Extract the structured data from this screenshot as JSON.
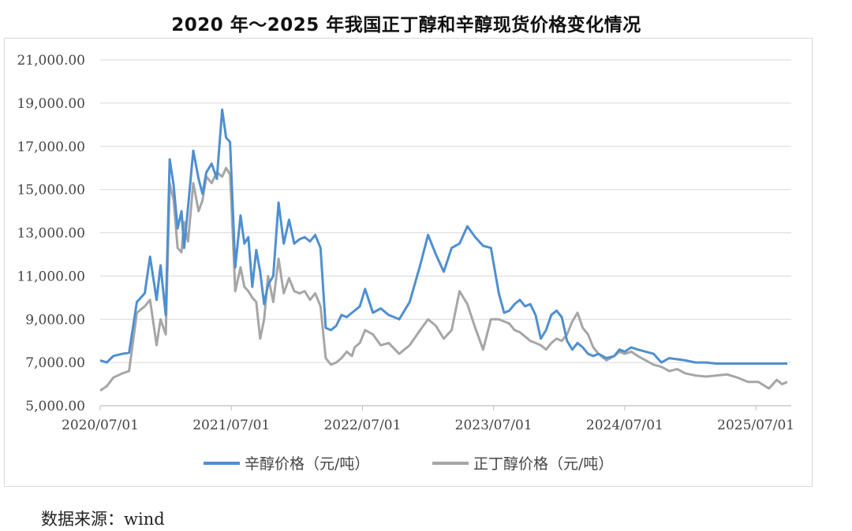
{
  "title": "2020 年～2025 年我国正丁醇和辛醇现货价格变化情况",
  "source": "数据来源：wind",
  "chart_data": {
    "type": "line",
    "title": "2020 年～2025 年我国正丁醇和辛醇现货价格变化情况",
    "xlabel": "",
    "ylabel": "",
    "ylim": [
      5000,
      21000
    ],
    "yticks": [
      5000,
      7000,
      9000,
      11000,
      13000,
      15000,
      17000,
      19000,
      21000
    ],
    "ytick_labels": [
      "5,000.00",
      "7,000.00",
      "9,000.00",
      "11,000.00",
      "13,000.00",
      "15,000.00",
      "17,000.00",
      "19,000.00",
      "21,000.00"
    ],
    "xlim": [
      2020.5,
      2025.77
    ],
    "xticks": [
      2020.5,
      2021.5,
      2022.5,
      2023.5,
      2024.5,
      2025.5
    ],
    "xtick_labels": [
      "2020/07/01",
      "2021/07/01",
      "2022/07/01",
      "2023/07/01",
      "2024/07/01",
      "2025/07/01"
    ],
    "grid": true,
    "legend": "bottom",
    "series": [
      {
        "name": "辛醇价格（元/吨）",
        "color": "#4f8fd0",
        "x": [
          2020.5,
          2020.55,
          2020.6,
          2020.67,
          2020.72,
          2020.78,
          2020.84,
          2020.88,
          2020.93,
          2020.96,
          2021.0,
          2021.03,
          2021.06,
          2021.09,
          2021.12,
          2021.14,
          2021.17,
          2021.21,
          2021.25,
          2021.28,
          2021.31,
          2021.35,
          2021.39,
          2021.43,
          2021.46,
          2021.49,
          2021.5,
          2021.53,
          2021.57,
          2021.6,
          2021.63,
          2021.66,
          2021.69,
          2021.72,
          2021.75,
          2021.78,
          2021.82,
          2021.86,
          2021.9,
          2021.94,
          2021.98,
          2022.02,
          2022.06,
          2022.1,
          2022.14,
          2022.18,
          2022.22,
          2022.26,
          2022.3,
          2022.34,
          2022.38,
          2022.42,
          2022.44,
          2022.48,
          2022.52,
          2022.58,
          2022.64,
          2022.7,
          2022.78,
          2022.86,
          2022.94,
          2023.0,
          2023.06,
          2023.12,
          2023.18,
          2023.24,
          2023.3,
          2023.36,
          2023.42,
          2023.48,
          2023.54,
          2023.58,
          2023.62,
          2023.66,
          2023.7,
          2023.74,
          2023.78,
          2023.82,
          2023.86,
          2023.9,
          2023.94,
          2023.98,
          2024.02,
          2024.06,
          2024.1,
          2024.14,
          2024.18,
          2024.22,
          2024.26,
          2024.3,
          2024.36,
          2024.42,
          2024.46,
          2024.5,
          2024.55,
          2024.6,
          2024.66,
          2024.72,
          2024.78,
          2024.84,
          2024.9,
          2024.96,
          2025.04,
          2025.12,
          2025.2,
          2025.28,
          2025.36,
          2025.44,
          2025.52,
          2025.6,
          2025.66,
          2025.7,
          2025.74
        ],
        "values": [
          7100,
          7000,
          7300,
          7400,
          7450,
          9800,
          10200,
          11900,
          9900,
          11500,
          9200,
          16400,
          15200,
          13200,
          14000,
          12300,
          14200,
          16800,
          15500,
          14800,
          15800,
          16200,
          15500,
          18700,
          17400,
          17200,
          15800,
          11400,
          13800,
          12500,
          12800,
          10500,
          12200,
          11200,
          9700,
          10600,
          11000,
          14400,
          12500,
          13600,
          12500,
          12700,
          12800,
          12600,
          12900,
          12300,
          8600,
          8500,
          8700,
          9200,
          9100,
          9300,
          9400,
          9600,
          10400,
          9300,
          9500,
          9200,
          9000,
          9800,
          11500,
          12900,
          12000,
          11200,
          12300,
          12500,
          13300,
          12800,
          12400,
          12300,
          10200,
          9300,
          9400,
          9700,
          9900,
          9600,
          9700,
          9200,
          8100,
          8500,
          9200,
          9400,
          9100,
          8000,
          7600,
          7900,
          7700,
          7400,
          7300,
          7400,
          7200,
          7300,
          7600,
          7500,
          7700,
          7600,
          7500,
          7400,
          7000,
          7200,
          7150,
          7100,
          7000,
          7000,
          6950,
          6950,
          6950,
          6950,
          6950,
          6950,
          6950,
          6950,
          6950
        ]
      },
      {
        "name": "正丁醇价格（元/吨）",
        "color": "#a6a6a6",
        "x": [
          2020.5,
          2020.55,
          2020.6,
          2020.67,
          2020.72,
          2020.78,
          2020.84,
          2020.88,
          2020.93,
          2020.96,
          2021.0,
          2021.03,
          2021.06,
          2021.09,
          2021.12,
          2021.14,
          2021.17,
          2021.21,
          2021.25,
          2021.28,
          2021.31,
          2021.35,
          2021.39,
          2021.43,
          2021.46,
          2021.49,
          2021.5,
          2021.53,
          2021.57,
          2021.6,
          2021.63,
          2021.66,
          2021.69,
          2021.72,
          2021.75,
          2021.78,
          2021.82,
          2021.86,
          2021.9,
          2021.94,
          2021.98,
          2022.02,
          2022.06,
          2022.1,
          2022.14,
          2022.18,
          2022.22,
          2022.26,
          2022.3,
          2022.34,
          2022.38,
          2022.42,
          2022.44,
          2022.48,
          2022.52,
          2022.58,
          2022.64,
          2022.7,
          2022.78,
          2022.86,
          2022.94,
          2023.0,
          2023.06,
          2023.12,
          2023.18,
          2023.24,
          2023.3,
          2023.36,
          2023.42,
          2023.48,
          2023.54,
          2023.58,
          2023.62,
          2023.66,
          2023.7,
          2023.74,
          2023.78,
          2023.82,
          2023.86,
          2023.9,
          2023.94,
          2023.98,
          2024.02,
          2024.06,
          2024.1,
          2024.14,
          2024.18,
          2024.22,
          2024.26,
          2024.3,
          2024.36,
          2024.42,
          2024.46,
          2024.5,
          2024.55,
          2024.6,
          2024.66,
          2024.72,
          2024.78,
          2024.84,
          2024.9,
          2024.96,
          2025.04,
          2025.12,
          2025.2,
          2025.28,
          2025.36,
          2025.44,
          2025.52,
          2025.6,
          2025.66,
          2025.7,
          2025.74
        ],
        "values": [
          5700,
          5900,
          6300,
          6500,
          6600,
          9300,
          9600,
          9900,
          7800,
          9000,
          8300,
          15300,
          14500,
          12300,
          12100,
          13500,
          12600,
          15300,
          14000,
          14500,
          15600,
          15300,
          15800,
          15600,
          16000,
          15700,
          14500,
          10300,
          11400,
          10500,
          10300,
          10000,
          9800,
          8100,
          9000,
          11000,
          9800,
          11800,
          10200,
          10900,
          10300,
          10200,
          10300,
          9900,
          10200,
          9600,
          7200,
          6900,
          7000,
          7200,
          7500,
          7300,
          7700,
          7900,
          8500,
          8300,
          7800,
          7900,
          7400,
          7800,
          8500,
          9000,
          8700,
          8100,
          8500,
          10300,
          9700,
          8600,
          7600,
          9000,
          9000,
          8900,
          8800,
          8500,
          8400,
          8200,
          8000,
          7900,
          7800,
          7600,
          7900,
          8100,
          8000,
          8300,
          8900,
          9300,
          8600,
          8300,
          7700,
          7400,
          7100,
          7300,
          7500,
          7400,
          7500,
          7300,
          7100,
          6900,
          6800,
          6600,
          6700,
          6500,
          6400,
          6350,
          6400,
          6450,
          6300,
          6100,
          6100,
          5800,
          6200,
          6000,
          6100
        ]
      }
    ]
  }
}
